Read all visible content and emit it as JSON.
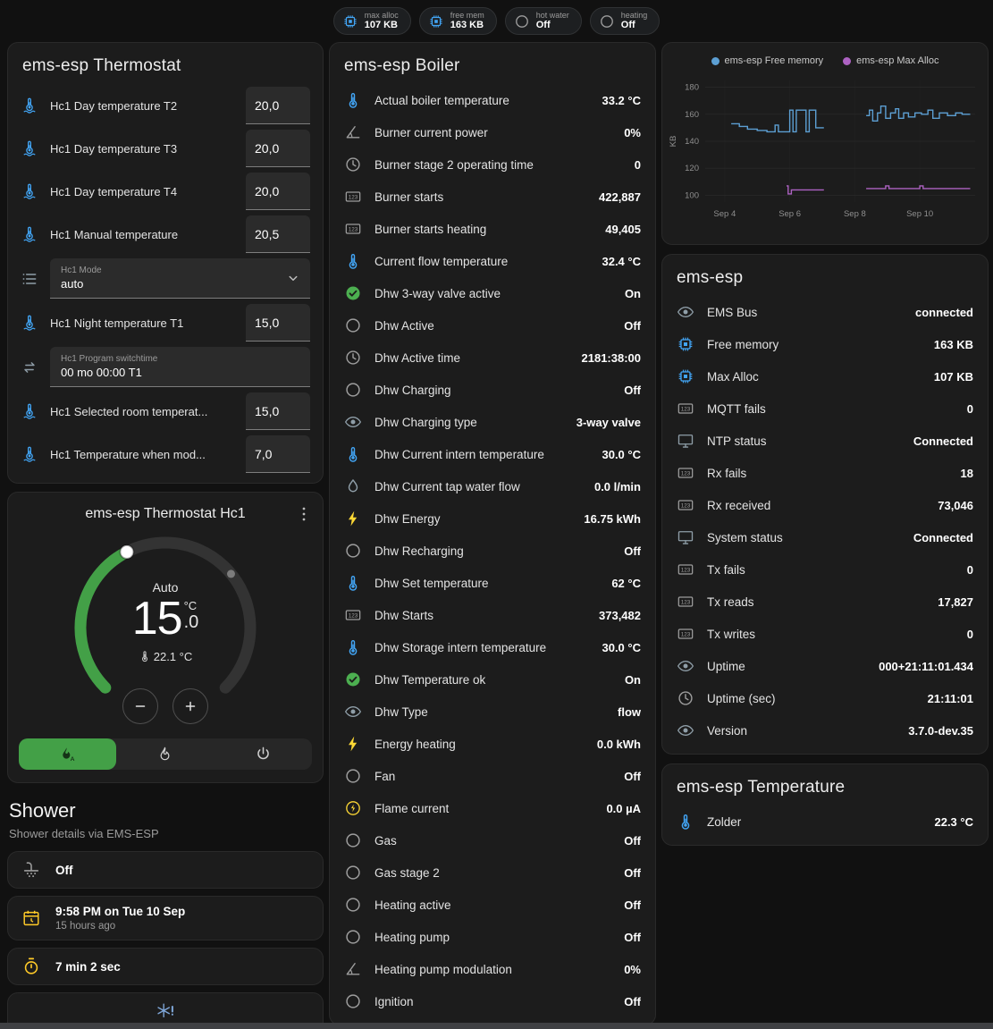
{
  "colors": {
    "page_bg": "#111111",
    "card_bg": "#1c1c1c",
    "accent_green": "#43a047",
    "accent_blue": "#42a5f5",
    "accent_yellow": "#fdd835"
  },
  "topbar": {
    "badges": [
      {
        "icon": "chip",
        "icon_color": "#42a5f5",
        "label": "max alloc",
        "value": "107 KB"
      },
      {
        "icon": "chip",
        "icon_color": "#42a5f5",
        "label": "free mem",
        "value": "163 KB"
      },
      {
        "icon": "circle-outline",
        "icon_color": "#9d9d9d",
        "label": "hot water",
        "value": "Off"
      },
      {
        "icon": "circle-outline",
        "icon_color": "#9d9d9d",
        "label": "heating",
        "value": "Off"
      }
    ]
  },
  "thermostat_card": {
    "title": "ems-esp Thermostat",
    "rows": [
      {
        "type": "number",
        "icon": "thermometer-water",
        "icon_color": "#42a5f5",
        "label": "Hc1 Day temperature T2",
        "value": "20,0"
      },
      {
        "type": "number",
        "icon": "thermometer-water",
        "icon_color": "#42a5f5",
        "label": "Hc1 Day temperature T3",
        "value": "20,0"
      },
      {
        "type": "number",
        "icon": "thermometer-water",
        "icon_color": "#42a5f5",
        "label": "Hc1 Day temperature T4",
        "value": "20,0"
      },
      {
        "type": "number",
        "icon": "thermometer-water",
        "icon_color": "#42a5f5",
        "label": "Hc1 Manual temperature",
        "value": "20,5"
      },
      {
        "type": "select",
        "icon": "format-list",
        "icon_color": "#8f9ea8",
        "field_label": "Hc1 Mode",
        "value": "auto"
      },
      {
        "type": "number",
        "icon": "thermometer-water",
        "icon_color": "#42a5f5",
        "label": "Hc1 Night temperature T1",
        "value": "15,0"
      },
      {
        "type": "text",
        "icon": "swap-horizontal",
        "icon_color": "#8f9ea8",
        "field_label": "Hc1 Program switchtime",
        "value": "00 mo 00:00 T1"
      },
      {
        "type": "number",
        "icon": "thermometer-water",
        "icon_color": "#42a5f5",
        "label": "Hc1 Selected room temperat...",
        "value": "15,0"
      },
      {
        "type": "number",
        "icon": "thermometer-water",
        "icon_color": "#42a5f5",
        "label": "Hc1 Temperature when mod...",
        "value": "7,0"
      }
    ]
  },
  "dial_card": {
    "title": "ems-esp Thermostat Hc1",
    "state_label": "Auto",
    "target_int": "15",
    "target_dec": ".0",
    "unit": "°C",
    "current": "22.1 °C",
    "arc_color": "#43a047",
    "modes": [
      {
        "name": "auto",
        "icon": "fire-auto",
        "active": true
      },
      {
        "name": "heat",
        "icon": "fire",
        "active": false
      },
      {
        "name": "off",
        "icon": "power",
        "active": false
      }
    ]
  },
  "shower": {
    "title": "Shower",
    "subtitle": "Shower details via EMS-ESP",
    "items": [
      {
        "icon": "shower",
        "icon_color": "#9d9d9d",
        "primary": "Off"
      },
      {
        "icon": "calendar-clock",
        "icon_color": "#ffca28",
        "primary": "9:58 PM on Tue 10 Sep",
        "secondary": "15 hours ago"
      },
      {
        "icon": "timer",
        "icon_color": "#ffca28",
        "primary": "7 min 2 sec"
      },
      {
        "icon": "snowflake-alert",
        "icon_color": "#7fa7d9"
      }
    ]
  },
  "boiler_card": {
    "title": "ems-esp Boiler",
    "rows": [
      {
        "icon": "thermometer",
        "icon_color": "#42a5f5",
        "label": "Actual boiler temperature",
        "value": "33.2 °C"
      },
      {
        "icon": "angle-acute",
        "icon_color": "#9d9d9d",
        "label": "Burner current power",
        "value": "0%"
      },
      {
        "icon": "clock-outline",
        "icon_color": "#9d9d9d",
        "label": "Burner stage 2 operating time",
        "value": "0"
      },
      {
        "icon": "counter",
        "icon_color": "#9d9d9d",
        "label": "Burner starts",
        "value": "422,887"
      },
      {
        "icon": "counter",
        "icon_color": "#9d9d9d",
        "label": "Burner starts heating",
        "value": "49,405"
      },
      {
        "icon": "thermometer",
        "icon_color": "#42a5f5",
        "label": "Current flow temperature",
        "value": "32.4 °C"
      },
      {
        "icon": "check-circle",
        "icon_color": "#4caf50",
        "label": "Dhw 3-way valve active",
        "value": "On"
      },
      {
        "icon": "circle-outline",
        "icon_color": "#9d9d9d",
        "label": "Dhw Active",
        "value": "Off"
      },
      {
        "icon": "clock-outline",
        "icon_color": "#9d9d9d",
        "label": "Dhw Active time",
        "value": "2181:38:00"
      },
      {
        "icon": "circle-outline",
        "icon_color": "#9d9d9d",
        "label": "Dhw Charging",
        "value": "Off"
      },
      {
        "icon": "eye",
        "icon_color": "#8f9ea8",
        "label": "Dhw Charging type",
        "value": "3-way valve"
      },
      {
        "icon": "thermometer",
        "icon_color": "#42a5f5",
        "label": "Dhw Current intern temperature",
        "value": "30.0 °C"
      },
      {
        "icon": "water",
        "icon_color": "#8f9ea8",
        "label": "Dhw Current tap water flow",
        "value": "0.0 l/min"
      },
      {
        "icon": "lightning",
        "icon_color": "#fdd835",
        "label": "Dhw Energy",
        "value": "16.75 kWh"
      },
      {
        "icon": "circle-outline",
        "icon_color": "#9d9d9d",
        "label": "Dhw Recharging",
        "value": "Off"
      },
      {
        "icon": "thermometer",
        "icon_color": "#42a5f5",
        "label": "Dhw Set temperature",
        "value": "62 °C"
      },
      {
        "icon": "counter",
        "icon_color": "#9d9d9d",
        "label": "Dhw Starts",
        "value": "373,482"
      },
      {
        "icon": "thermometer",
        "icon_color": "#42a5f5",
        "label": "Dhw Storage intern temperature",
        "value": "30.0 °C"
      },
      {
        "icon": "check-circle",
        "icon_color": "#4caf50",
        "label": "Dhw Temperature ok",
        "value": "On"
      },
      {
        "icon": "eye",
        "icon_color": "#8f9ea8",
        "label": "Dhw Type",
        "value": "flow"
      },
      {
        "icon": "lightning",
        "icon_color": "#fdd835",
        "label": "Energy heating",
        "value": "0.0 kWh"
      },
      {
        "icon": "circle-outline",
        "icon_color": "#9d9d9d",
        "label": "Fan",
        "value": "Off"
      },
      {
        "icon": "flash-circle",
        "icon_color": "#fdd835",
        "label": "Flame current",
        "value": "0.0 µA"
      },
      {
        "icon": "circle-outline",
        "icon_color": "#9d9d9d",
        "label": "Gas",
        "value": "Off"
      },
      {
        "icon": "circle-outline",
        "icon_color": "#9d9d9d",
        "label": "Gas stage 2",
        "value": "Off"
      },
      {
        "icon": "circle-outline",
        "icon_color": "#9d9d9d",
        "label": "Heating active",
        "value": "Off"
      },
      {
        "icon": "circle-outline",
        "icon_color": "#9d9d9d",
        "label": "Heating pump",
        "value": "Off"
      },
      {
        "icon": "angle-acute",
        "icon_color": "#9d9d9d",
        "label": "Heating pump modulation",
        "value": "0%"
      },
      {
        "icon": "circle-outline",
        "icon_color": "#9d9d9d",
        "label": "Ignition",
        "value": "Off"
      }
    ]
  },
  "chart_data": {
    "type": "line",
    "ylabel": "KB",
    "ylim": [
      95,
      185
    ],
    "yticks": [
      100,
      120,
      140,
      160,
      180
    ],
    "xlim": [
      3.4,
      11.7
    ],
    "xticks": [
      {
        "x": 4,
        "label": "Sep 4"
      },
      {
        "x": 6,
        "label": "Sep 6"
      },
      {
        "x": 8,
        "label": "Sep 8"
      },
      {
        "x": 10,
        "label": "Sep 10"
      }
    ],
    "legend_position": "top",
    "grid": true,
    "series": [
      {
        "name": "ems-esp Free memory",
        "color": "#5c9fd3",
        "points": [
          [
            4.2,
            153
          ],
          [
            4.45,
            151
          ],
          [
            4.7,
            149
          ],
          [
            5.0,
            148
          ],
          [
            5.3,
            147
          ],
          [
            5.55,
            152
          ],
          [
            5.65,
            147
          ],
          [
            5.95,
            147
          ],
          [
            6.0,
            163
          ],
          [
            6.1,
            147
          ],
          [
            6.2,
            163
          ],
          [
            6.45,
            163
          ],
          [
            6.5,
            147
          ],
          [
            6.6,
            163
          ],
          [
            6.75,
            163
          ],
          [
            6.8,
            150
          ],
          [
            7.05,
            150
          ],
          [
            8.35,
            159
          ],
          [
            8.45,
            163
          ],
          [
            8.55,
            155
          ],
          [
            8.7,
            161
          ],
          [
            8.8,
            166
          ],
          [
            8.95,
            157
          ],
          [
            9.1,
            161
          ],
          [
            9.25,
            164
          ],
          [
            9.35,
            157
          ],
          [
            9.5,
            161
          ],
          [
            9.65,
            158
          ],
          [
            9.85,
            161
          ],
          [
            10.05,
            160
          ],
          [
            10.25,
            163
          ],
          [
            10.4,
            157
          ],
          [
            10.6,
            161
          ],
          [
            10.85,
            159
          ],
          [
            11.1,
            161
          ],
          [
            11.3,
            160
          ],
          [
            11.55,
            160
          ]
        ]
      },
      {
        "name": "ems-esp Max Alloc",
        "color": "#ad62c2",
        "points": [
          [
            5.9,
            107
          ],
          [
            5.95,
            101
          ],
          [
            6.05,
            104
          ],
          [
            6.4,
            104
          ],
          [
            6.7,
            104
          ],
          [
            7.05,
            104
          ],
          [
            8.35,
            105
          ],
          [
            8.7,
            105
          ],
          [
            8.95,
            107
          ],
          [
            9.05,
            105
          ],
          [
            9.4,
            105
          ],
          [
            9.75,
            105
          ],
          [
            10.0,
            107
          ],
          [
            10.1,
            105
          ],
          [
            10.5,
            105
          ],
          [
            10.9,
            105
          ],
          [
            11.2,
            105
          ],
          [
            11.55,
            105
          ]
        ]
      }
    ]
  },
  "ems_card": {
    "title": "ems-esp",
    "rows": [
      {
        "icon": "eye",
        "icon_color": "#8f9ea8",
        "label": "EMS Bus",
        "value": "connected"
      },
      {
        "icon": "chip",
        "icon_color": "#42a5f5",
        "label": "Free memory",
        "value": "163 KB"
      },
      {
        "icon": "chip",
        "icon_color": "#42a5f5",
        "label": "Max Alloc",
        "value": "107 KB"
      },
      {
        "icon": "counter",
        "icon_color": "#9d9d9d",
        "label": "MQTT fails",
        "value": "0"
      },
      {
        "icon": "monitor",
        "icon_color": "#8f9ea8",
        "label": "NTP status",
        "value": "Connected"
      },
      {
        "icon": "counter",
        "icon_color": "#9d9d9d",
        "label": "Rx fails",
        "value": "18"
      },
      {
        "icon": "counter",
        "icon_color": "#9d9d9d",
        "label": "Rx received",
        "value": "73,046"
      },
      {
        "icon": "monitor",
        "icon_color": "#8f9ea8",
        "label": "System status",
        "value": "Connected"
      },
      {
        "icon": "counter",
        "icon_color": "#9d9d9d",
        "label": "Tx fails",
        "value": "0"
      },
      {
        "icon": "counter",
        "icon_color": "#9d9d9d",
        "label": "Tx reads",
        "value": "17,827"
      },
      {
        "icon": "counter",
        "icon_color": "#9d9d9d",
        "label": "Tx writes",
        "value": "0"
      },
      {
        "icon": "eye",
        "icon_color": "#8f9ea8",
        "label": "Uptime",
        "value": "000+21:11:01.434"
      },
      {
        "icon": "clock-outline",
        "icon_color": "#9d9d9d",
        "label": "Uptime (sec)",
        "value": "21:11:01"
      },
      {
        "icon": "eye",
        "icon_color": "#8f9ea8",
        "label": "Version",
        "value": "3.7.0-dev.35"
      }
    ]
  },
  "temp_card": {
    "title": "ems-esp Temperature",
    "rows": [
      {
        "icon": "thermometer",
        "icon_color": "#42a5f5",
        "label": "Zolder",
        "value": "22.3 °C"
      }
    ]
  }
}
